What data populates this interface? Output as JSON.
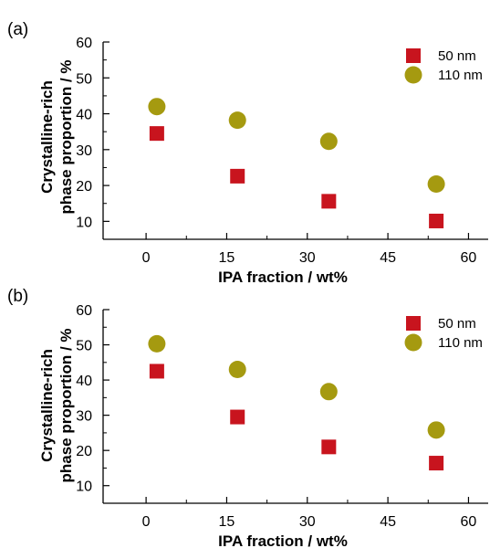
{
  "chart_data": [
    {
      "type": "scatter",
      "panel_label": "(a)",
      "xlabel": "IPA fraction / wt%",
      "ylabel_lines": [
        "Crystalline-rich",
        "phase proportion / %"
      ],
      "xlim": [
        -8,
        64
      ],
      "ylim": [
        5,
        60
      ],
      "xticks": [
        0,
        15,
        30,
        45,
        60
      ],
      "yticks": [
        10,
        20,
        30,
        40,
        50,
        60
      ],
      "legend_position": "top-right",
      "series": [
        {
          "name": "50 nm",
          "marker": "square",
          "color": "#c8141e",
          "x": [
            2,
            17,
            34,
            54
          ],
          "y": [
            34.5,
            22.6,
            15.6,
            10.1
          ]
        },
        {
          "name": "110 nm",
          "marker": "circle",
          "color": "#a59a10",
          "x": [
            2,
            17,
            34,
            54
          ],
          "y": [
            42.0,
            38.2,
            32.3,
            20.4
          ]
        }
      ]
    },
    {
      "type": "scatter",
      "panel_label": "(b)",
      "xlabel": "IPA fraction / wt%",
      "ylabel_lines": [
        "Crystalline-rich",
        "phase proportion / %"
      ],
      "xlim": [
        -8,
        64
      ],
      "ylim": [
        5,
        60
      ],
      "xticks": [
        0,
        15,
        30,
        45,
        60
      ],
      "yticks": [
        10,
        20,
        30,
        40,
        50,
        60
      ],
      "legend_position": "top-right",
      "series": [
        {
          "name": "50 nm",
          "marker": "square",
          "color": "#c8141e",
          "x": [
            2,
            17,
            34,
            54
          ],
          "y": [
            42.5,
            29.5,
            21.0,
            16.4
          ]
        },
        {
          "name": "110 nm",
          "marker": "circle",
          "color": "#a59a10",
          "x": [
            2,
            17,
            34,
            54
          ],
          "y": [
            50.3,
            43.0,
            36.7,
            25.8
          ]
        }
      ]
    }
  ]
}
